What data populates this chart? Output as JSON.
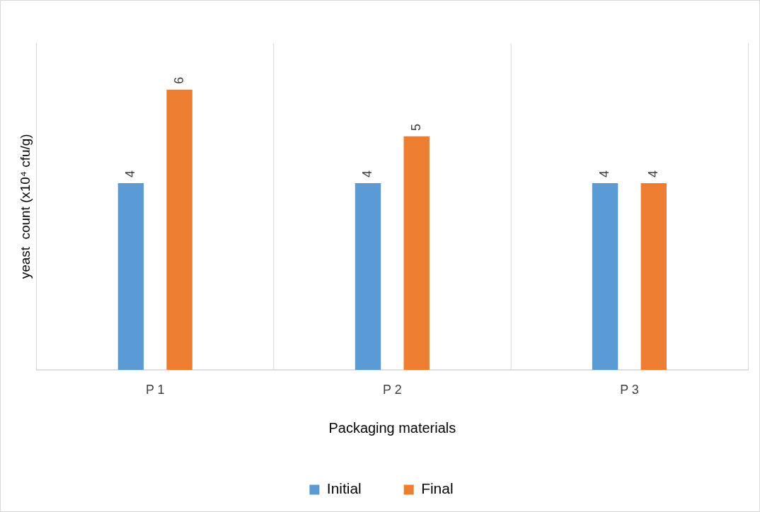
{
  "chart_data": {
    "type": "bar",
    "xlabel": "Packaging materials",
    "ylabel": "yeast  count (x10⁴ cfu/g)",
    "categories": [
      "P 1",
      "P 2",
      "P 3"
    ],
    "series": [
      {
        "name": "Initial",
        "color": "#5b9bd5",
        "values": [
          4,
          4,
          4
        ]
      },
      {
        "name": "Final",
        "color": "#ed7d31",
        "values": [
          6,
          5,
          4
        ]
      }
    ],
    "ylim": [
      0,
      7
    ],
    "grid": "x",
    "legend": "bottom",
    "data_labels": true,
    "tick_labels": "x"
  }
}
